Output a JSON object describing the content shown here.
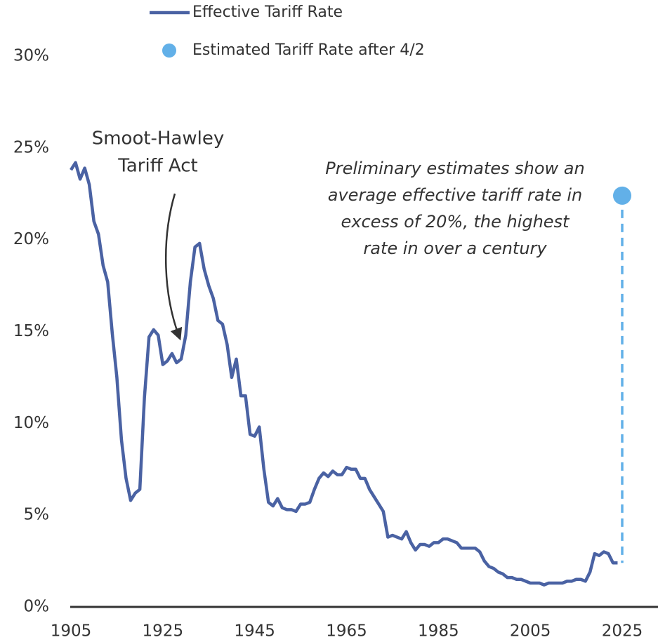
{
  "chart_data": {
    "type": "line",
    "annotations": {
      "event": [
        "Smoot-Hawley",
        "Tariff Act"
      ],
      "note": [
        "Preliminary estimates show an",
        "average effective tariff rate in",
        "excess of 20%, the highest",
        "rate in over a century"
      ]
    },
    "series": [
      {
        "name": "Effective Tariff Rate",
        "color": "#4a62a3",
        "x": [
          1905,
          1906,
          1907,
          1908,
          1909,
          1910,
          1911,
          1912,
          1913,
          1914,
          1915,
          1916,
          1917,
          1918,
          1919,
          1920,
          1921,
          1922,
          1923,
          1924,
          1925,
          1926,
          1927,
          1928,
          1929,
          1930,
          1931,
          1932,
          1933,
          1934,
          1935,
          1936,
          1937,
          1938,
          1939,
          1940,
          1941,
          1942,
          1943,
          1944,
          1945,
          1946,
          1947,
          1948,
          1949,
          1950,
          1951,
          1952,
          1953,
          1954,
          1955,
          1956,
          1957,
          1958,
          1959,
          1960,
          1961,
          1962,
          1963,
          1964,
          1965,
          1966,
          1967,
          1968,
          1969,
          1970,
          1971,
          1972,
          1973,
          1974,
          1975,
          1976,
          1977,
          1978,
          1979,
          1980,
          1981,
          1982,
          1983,
          1984,
          1985,
          1986,
          1987,
          1988,
          1989,
          1990,
          1991,
          1992,
          1993,
          1994,
          1995,
          1996,
          1997,
          1998,
          1999,
          2000,
          2001,
          2002,
          2003,
          2004,
          2005,
          2006,
          2007,
          2008,
          2009,
          2010,
          2011,
          2012,
          2013,
          2014,
          2015,
          2016,
          2017,
          2018,
          2019,
          2020,
          2021,
          2022,
          2023,
          2024
        ],
        "values": [
          23.8,
          24.2,
          23.3,
          23.9,
          23.0,
          21.0,
          20.3,
          18.6,
          17.7,
          14.9,
          12.5,
          9.1,
          7.0,
          5.8,
          6.2,
          6.4,
          11.4,
          14.7,
          15.1,
          14.8,
          13.2,
          13.4,
          13.8,
          13.3,
          13.5,
          14.8,
          17.7,
          19.6,
          19.8,
          18.4,
          17.5,
          16.8,
          15.6,
          15.4,
          14.3,
          12.5,
          13.5,
          11.5,
          11.5,
          9.4,
          9.3,
          9.8,
          7.5,
          5.7,
          5.5,
          5.9,
          5.4,
          5.3,
          5.3,
          5.2,
          5.6,
          5.6,
          5.7,
          6.4,
          7.0,
          7.3,
          7.1,
          7.4,
          7.2,
          7.2,
          7.6,
          7.5,
          7.5,
          7.0,
          7.0,
          6.4,
          6.0,
          5.6,
          5.2,
          3.8,
          3.9,
          3.8,
          3.7,
          4.1,
          3.5,
          3.1,
          3.4,
          3.4,
          3.3,
          3.5,
          3.5,
          3.7,
          3.7,
          3.6,
          3.5,
          3.2,
          3.2,
          3.2,
          3.2,
          3.0,
          2.5,
          2.2,
          2.1,
          1.9,
          1.8,
          1.6,
          1.6,
          1.5,
          1.5,
          1.4,
          1.3,
          1.3,
          1.3,
          1.2,
          1.3,
          1.3,
          1.3,
          1.3,
          1.4,
          1.4,
          1.5,
          1.5,
          1.4,
          1.9,
          2.9,
          2.8,
          3.0,
          2.9,
          2.4,
          2.4
        ]
      },
      {
        "name": "Estimated Tariff Rate after 4/2",
        "color": "#62b0e8",
        "x": [
          2025
        ],
        "values": [
          22.4
        ]
      }
    ],
    "xlim": [
      1905,
      2025
    ],
    "xticks": [
      1905,
      1925,
      1945,
      1965,
      1985,
      2005,
      2025
    ],
    "ylim": [
      0,
      30
    ],
    "yticks": [
      {
        "value": 0,
        "label": "0%"
      },
      {
        "value": 5,
        "label": "5%"
      },
      {
        "value": 10,
        "label": "10%"
      },
      {
        "value": 15,
        "label": "15%"
      },
      {
        "value": 20,
        "label": "20%"
      },
      {
        "value": 25,
        "label": "25%"
      },
      {
        "value": 30,
        "label": "30%"
      }
    ]
  }
}
